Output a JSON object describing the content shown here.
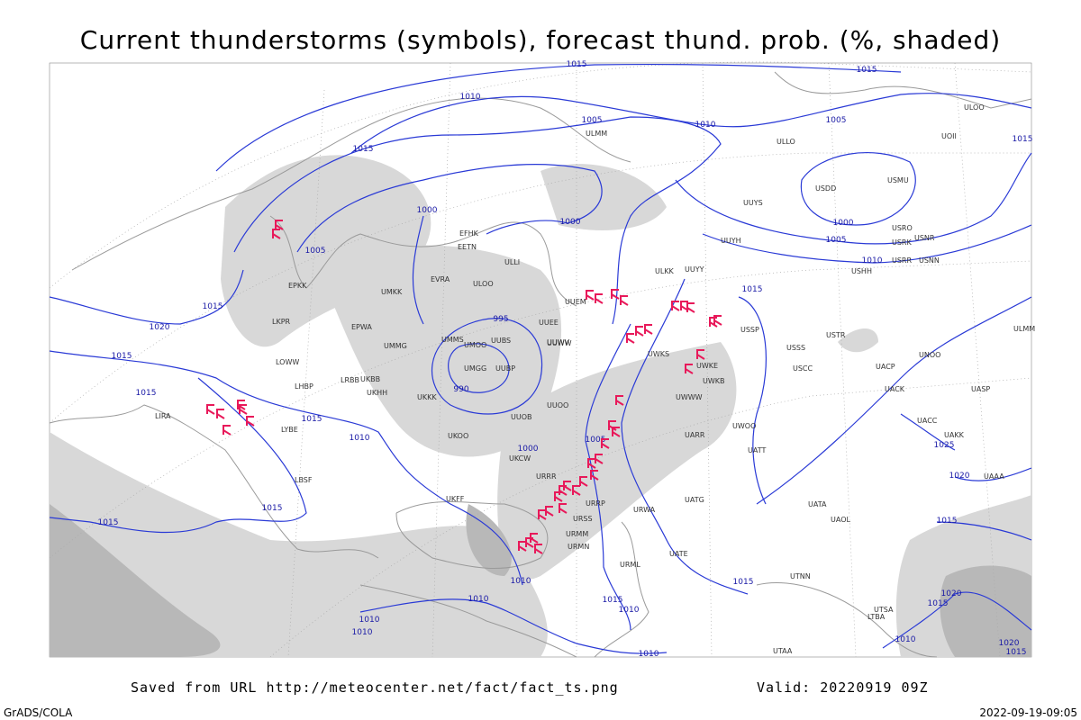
{
  "header": {
    "title": "Current thunderstorms (symbols), forecast thund. prob. (%, shaded)"
  },
  "footer": {
    "saved": "Saved from URL http://meteocenter.net/fact/fact_ts.png",
    "valid": "Valid: 20220919 09Z",
    "grads": "GrADS/COLA",
    "timestamp": "2022-09-19-09:05"
  },
  "isobar_labels": [
    "1015",
    "1015",
    "1010",
    "1005",
    "1010",
    "1005",
    "1015",
    "1015",
    "1000",
    "1000",
    "1005",
    "1005",
    "1010",
    "1000",
    "1015",
    "1015",
    "1020",
    "995",
    "1015",
    "990",
    "1015",
    "1015",
    "1010",
    "1005",
    "1000",
    "1025",
    "1020",
    "1015",
    "1015",
    "1015",
    "1010",
    "1015",
    "1010",
    "1015",
    "1010",
    "1010",
    "1010",
    "1010",
    "1020",
    "1015",
    "1010",
    "1020",
    "1015"
  ],
  "stations": [
    "ULOO",
    "UOII",
    "ULLO",
    "USDD",
    "USMU",
    "UUYS",
    "UUYH",
    "USRO",
    "USRK",
    "USNR",
    "USRR",
    "USNN",
    "USHH",
    "ULKK",
    "UUYY",
    "ULLI",
    "ULMM",
    "EFHK",
    "EETN",
    "EVRA",
    "ULOO",
    "UMKK",
    "EPWA",
    "UMMG",
    "UMMS",
    "UMOO",
    "UUBS",
    "UMGG",
    "UUBP",
    "UUWW",
    "UUOO",
    "UKKK",
    "UKBB",
    "UKHH",
    "UKOO",
    "UKCW",
    "URRR",
    "URRP",
    "URSS",
    "URMM",
    "URMN",
    "URML",
    "URWA",
    "UATG",
    "UATE",
    "UATT",
    "UARR",
    "UWOO",
    "USSS",
    "USCC",
    "USTR",
    "UNOO",
    "UACP",
    "UACK",
    "UASP",
    "UACC",
    "UAKK",
    "UAAA",
    "UAOL",
    "UATA",
    "UTNN",
    "UTAA",
    "UTSA",
    "LTBA",
    "LBSF",
    "LYBE",
    "LHBP",
    "LOWW",
    "LKPR",
    "EPKK",
    "LRBB",
    "UKFF",
    "UUWV",
    "UUEE",
    "UWWW",
    "UWKS",
    "UWKE",
    "UWKB",
    "UUOB",
    "UUEM",
    "ULMM",
    "USSP",
    "LIRA"
  ]
}
